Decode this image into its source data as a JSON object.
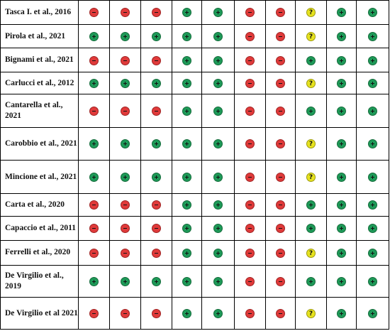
{
  "legend_symbols": {
    "low": "+",
    "high": "−",
    "unclear": "?"
  },
  "colors": {
    "low": "#1e9a58",
    "high": "#e03a3a",
    "unclear": "#e6e21f"
  },
  "rows": [
    {
      "study": "Tasca I. et al., 2016",
      "judgements": [
        "high",
        "high",
        "high",
        "low",
        "low",
        "high",
        "high",
        "unclear",
        "low",
        "low"
      ]
    },
    {
      "study": "Pirola et al., 2021",
      "judgements": [
        "low",
        "low",
        "low",
        "low",
        "low",
        "high",
        "high",
        "unclear",
        "low",
        "low"
      ]
    },
    {
      "study": "Bignami et al., 2021",
      "judgements": [
        "high",
        "high",
        "high",
        "low",
        "low",
        "high",
        "high",
        "low",
        "low",
        "low"
      ]
    },
    {
      "study": "Carlucci et al., 2012",
      "judgements": [
        "low",
        "low",
        "low",
        "low",
        "low",
        "high",
        "high",
        "unclear",
        "low",
        "low"
      ]
    },
    {
      "study": "Cantarella et al., 2021",
      "judgements": [
        "high",
        "high",
        "high",
        "low",
        "low",
        "high",
        "high",
        "low",
        "low",
        "low"
      ]
    },
    {
      "study": "Carobbio et al., 2021",
      "judgements": [
        "low",
        "low",
        "low",
        "low",
        "low",
        "high",
        "high",
        "unclear",
        "low",
        "low"
      ]
    },
    {
      "study": "Mincione et al., 2021",
      "judgements": [
        "low",
        "low",
        "low",
        "low",
        "low",
        "high",
        "high",
        "unclear",
        "low",
        "low"
      ]
    },
    {
      "study": "Carta et al., 2020",
      "judgements": [
        "high",
        "high",
        "high",
        "low",
        "low",
        "high",
        "high",
        "low",
        "low",
        "low"
      ]
    },
    {
      "study": "Capaccio et al., 2011",
      "judgements": [
        "high",
        "high",
        "high",
        "low",
        "low",
        "high",
        "high",
        "low",
        "low",
        "low"
      ]
    },
    {
      "study": "Ferrelli et al., 2020",
      "judgements": [
        "high",
        "high",
        "high",
        "low",
        "low",
        "high",
        "high",
        "unclear",
        "low",
        "low"
      ]
    },
    {
      "study": "De Virgilio et al., 2019",
      "judgements": [
        "low",
        "low",
        "low",
        "low",
        "low",
        "high",
        "high",
        "low",
        "low",
        "low"
      ]
    },
    {
      "study": "De Virgilio et al 2021",
      "judgements": [
        "high",
        "high",
        "high",
        "low",
        "low",
        "high",
        "high",
        "unclear",
        "low",
        "low"
      ]
    }
  ]
}
